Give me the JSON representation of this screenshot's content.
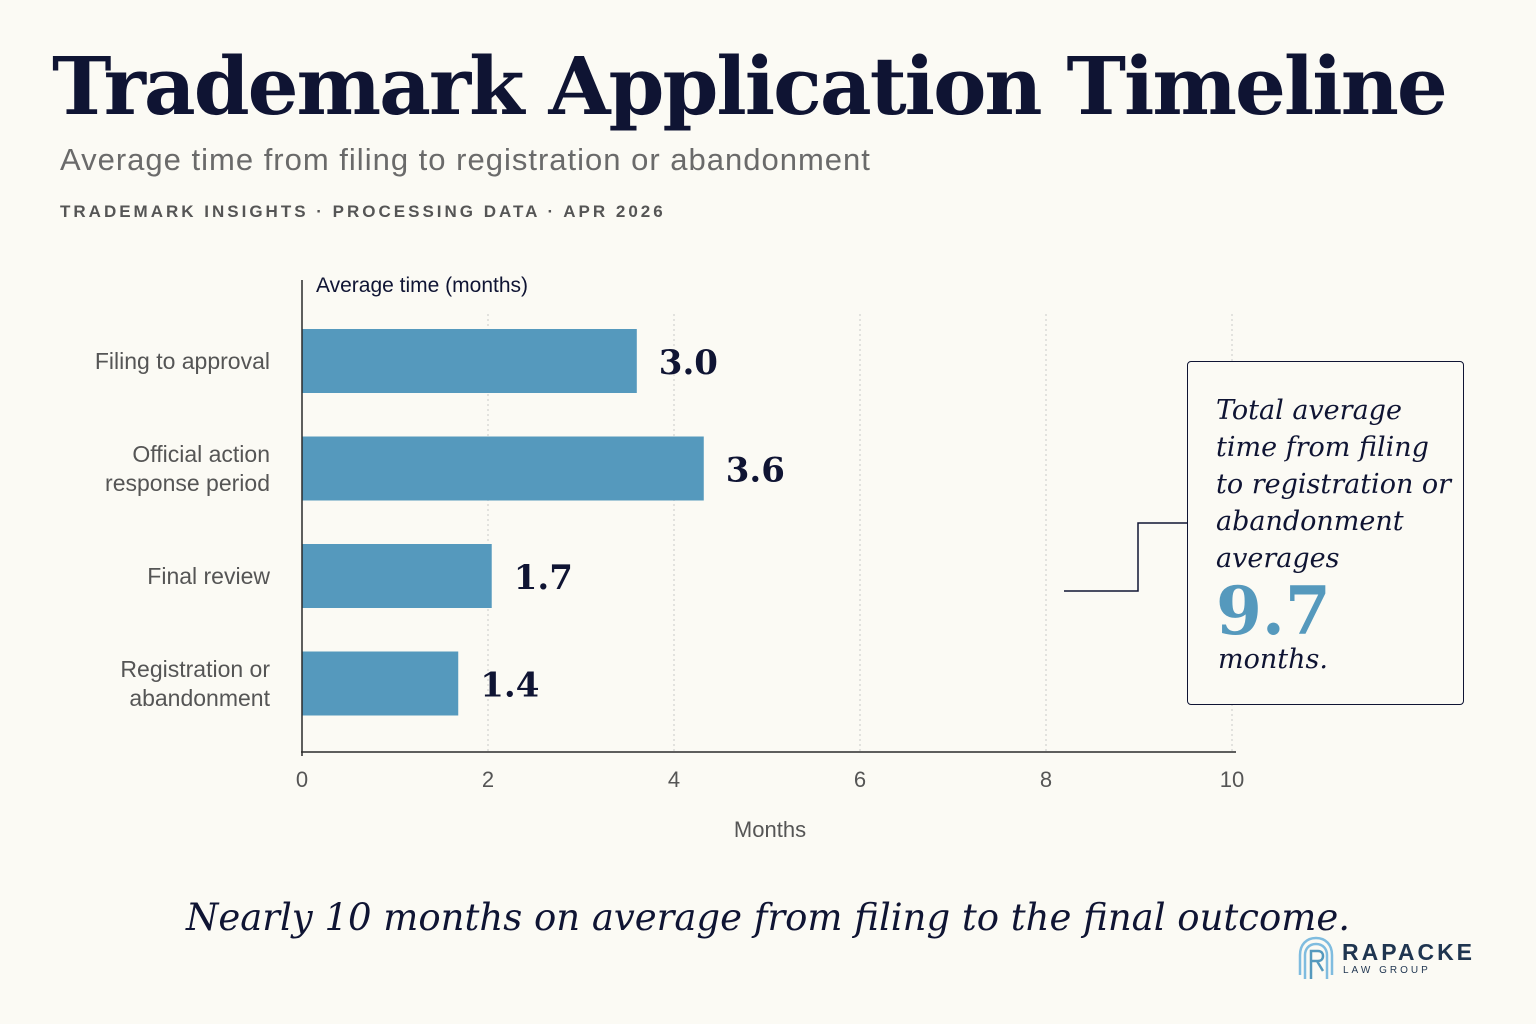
{
  "header": {
    "title": "Trademark Application Timeline",
    "subtitle": "Average time from filing to registration or abandonment",
    "meta": "TRADEMARK INSIGHTS  ·  PROCESSING DATA  ·  APR 2026"
  },
  "chart_data": {
    "type": "bar",
    "orientation": "horizontal",
    "categories": [
      "Filing to approval",
      "Official action response period",
      "Final review",
      "Registration or abandonment"
    ],
    "values": [
      3.0,
      3.6,
      1.7,
      1.4
    ],
    "value_labels": [
      "3.0",
      "3.6",
      "1.7",
      "1.4"
    ],
    "ylabel": "Average time (months)",
    "xlabel": "Months",
    "xlim": [
      0,
      10
    ],
    "xticks": [
      0,
      2,
      4,
      6,
      8,
      10
    ],
    "xtick_labels": [
      "0",
      "2",
      "4",
      "6",
      "8",
      "10"
    ],
    "grid": "vertical dashed",
    "bar_color": "#5599bd"
  },
  "callout": {
    "text": "Total average time from filing to registration or abandonment averages",
    "value": "9.7",
    "unit": "months."
  },
  "caption": "Nearly 10 months on average from filing to the final outcome.",
  "logo": {
    "name": "RAPACKE",
    "sub": "LAW GROUP"
  },
  "colors": {
    "navy": "#0f1433",
    "accent": "#5599bd",
    "background": "#fbfaf4"
  }
}
